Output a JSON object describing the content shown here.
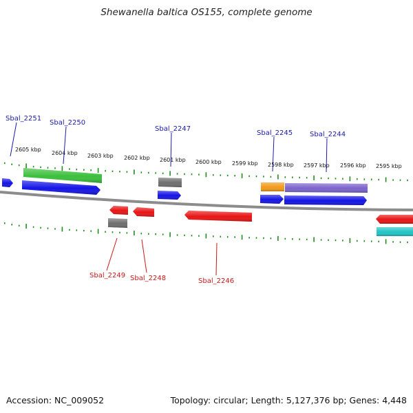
{
  "title": "Shewanella baltica OS155, complete genome",
  "footer": {
    "accession": "Accession: NC_009052",
    "summary": "Topology: circular; Length: 5,127,376 bp; Genes: 4,448"
  },
  "genome_map": {
    "units": "kbp",
    "axis_ticks": [
      "2605 kbp",
      "2604 kbp",
      "2603 kbp",
      "2602 kbp",
      "2601 kbp",
      "2600 kbp",
      "2599 kbp",
      "2598 kbp",
      "2597 kbp",
      "2596 kbp",
      "2595 kbp"
    ],
    "top_labels": [
      "Sbal_2251",
      "Sbal_2250",
      "Sbal_2247",
      "Sbal_2245",
      "Sbal_2244"
    ],
    "bottom_labels": [
      "Sbal_2249",
      "Sbal_2248",
      "Sbal_2246"
    ],
    "colors": {
      "green": "#3bbf3b",
      "blue": "#1414e6",
      "gray": "#6e6e6e",
      "orange": "#f29a1a",
      "purple": "#7a62cc",
      "red": "#e81414",
      "cyan": "#20c4c4",
      "backbone": "#8c8c8c",
      "ruler": "#1e8c1e"
    }
  }
}
